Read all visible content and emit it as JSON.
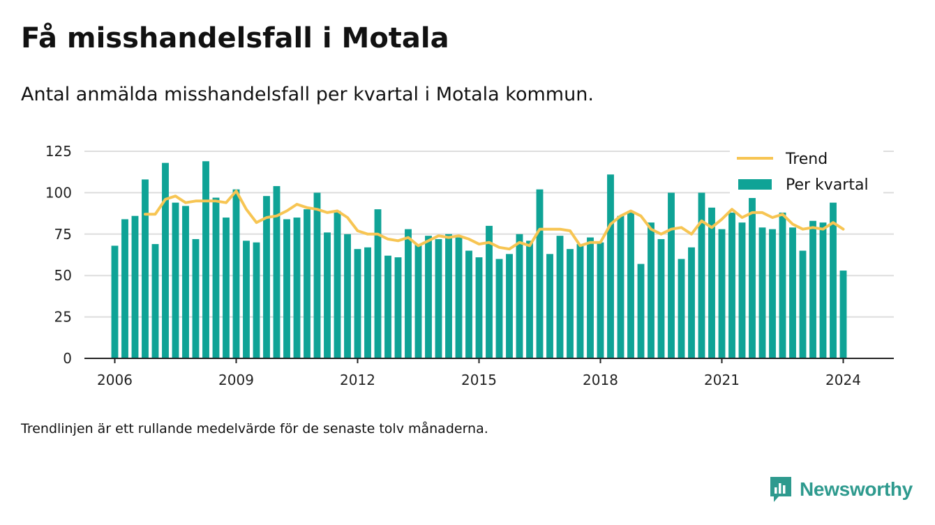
{
  "title": "Få misshandelsfall i Motala",
  "subtitle": "Antal anmälda misshandelsfall per kvartal i Motala kommun.",
  "footnote": "Trendlinjen är ett rullande medelvärde för de senaste tolv månaderna.",
  "brand": {
    "name": "Newsworthy",
    "logo_icon": "newsworthy-logo-icon"
  },
  "colors": {
    "bars": "#0fa396",
    "trend": "#f7c553",
    "grid": "#dddddd",
    "axis": "#222222",
    "brand": "#2e9a8e"
  },
  "chart_data": {
    "type": "bar",
    "x_start": "2006 Q1",
    "x_step": "quarter",
    "xlim": [
      "2005 Q2",
      "2025 Q2"
    ],
    "ylim": [
      0,
      125
    ],
    "x_ticks": [
      "2006",
      "2009",
      "2012",
      "2015",
      "2018",
      "2021",
      "2024"
    ],
    "y_ticks": [
      0,
      25,
      50,
      75,
      100,
      125
    ],
    "grid": true,
    "legend_position": "top-right",
    "series": [
      {
        "name": "Per kvartal",
        "type": "bar",
        "values": [
          68,
          84,
          86,
          108,
          69,
          118,
          94,
          92,
          72,
          119,
          97,
          85,
          102,
          71,
          70,
          98,
          104,
          84,
          85,
          90,
          100,
          76,
          89,
          75,
          66,
          67,
          90,
          62,
          61,
          78,
          69,
          74,
          72,
          75,
          73,
          65,
          61,
          80,
          60,
          63,
          75,
          71,
          102,
          63,
          74,
          66,
          69,
          73,
          70,
          111,
          86,
          89,
          57,
          82,
          72,
          100,
          60,
          67,
          100,
          91,
          78,
          88,
          82,
          102,
          79,
          78,
          88,
          79,
          65,
          83,
          82,
          94,
          53
        ]
      },
      {
        "name": "Trend",
        "type": "line",
        "values": [
          null,
          null,
          null,
          87,
          87,
          96,
          98,
          94,
          95,
          95,
          95,
          94,
          101,
          90,
          82,
          85,
          86,
          89,
          93,
          91,
          90,
          88,
          89,
          85,
          77,
          75,
          75,
          72,
          71,
          73,
          68,
          71,
          74,
          73,
          74,
          72,
          69,
          70,
          67,
          66,
          70,
          68,
          78,
          78,
          78,
          77,
          68,
          70,
          70,
          81,
          86,
          89,
          86,
          78,
          75,
          78,
          79,
          75,
          83,
          79,
          84,
          90,
          85,
          88,
          88,
          85,
          87,
          81,
          78,
          79,
          78,
          82,
          78
        ]
      }
    ]
  }
}
